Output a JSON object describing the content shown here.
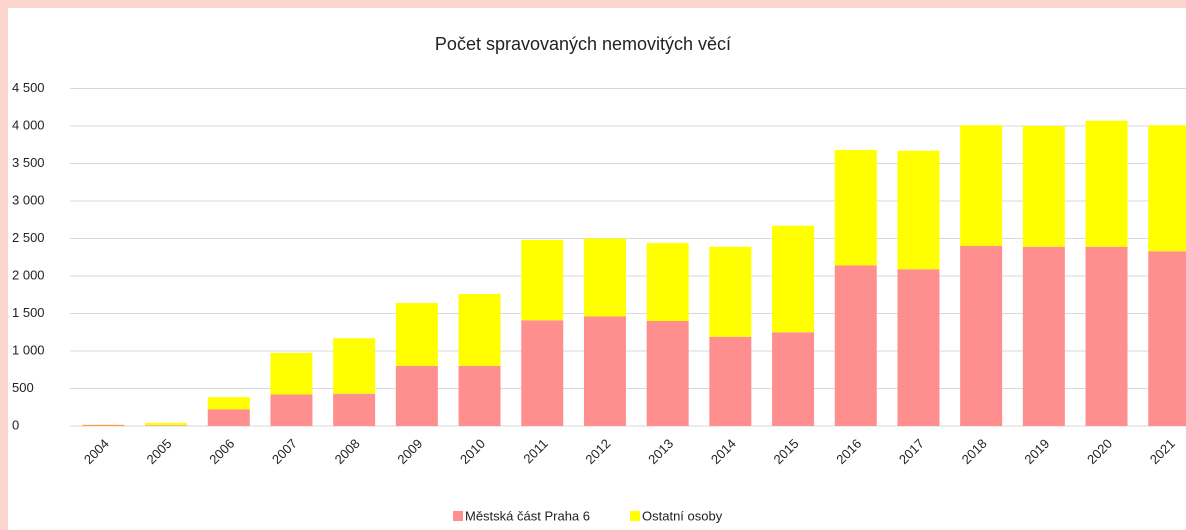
{
  "chart_data": {
    "type": "stacked_bar",
    "title": "Počet spravovaných nemovitých věcí",
    "categories": [
      "2004",
      "2005",
      "2006",
      "2007",
      "2008",
      "2009",
      "2010",
      "2011",
      "2012",
      "2013",
      "2014",
      "2015",
      "2016",
      "2017",
      "2018",
      "2019",
      "2020",
      "2021"
    ],
    "series": [
      {
        "name": "Městská část Praha 6",
        "color": "#ff8f8f",
        "values": [
          15,
          10,
          220,
          420,
          430,
          800,
          800,
          1410,
          1460,
          1400,
          1190,
          1250,
          2140,
          2090,
          2400,
          2390,
          2390,
          2330
        ]
      },
      {
        "name": "Ostatní osoby",
        "color": "#ffff00",
        "values": [
          5,
          30,
          165,
          555,
          740,
          840,
          960,
          1070,
          1040,
          1040,
          1200,
          1420,
          1540,
          1580,
          1610,
          1610,
          1680,
          1680
        ]
      }
    ],
    "ylim": [
      0,
      4500
    ],
    "yticks": [
      0,
      500,
      {
        "value": 1000,
        "label": "1 000"
      },
      {
        "value": 1500,
        "label": "1 500"
      },
      {
        "value": 2000,
        "label": "2 000"
      },
      {
        "value": 2500,
        "label": "2 500"
      },
      {
        "value": 3000,
        "label": "3 000"
      },
      {
        "value": 3500,
        "label": "3 500"
      },
      {
        "value": 4000,
        "label": "4 000"
      },
      {
        "value": 4500,
        "label": "4 500"
      }
    ],
    "grid": true,
    "legend": "bottom"
  }
}
